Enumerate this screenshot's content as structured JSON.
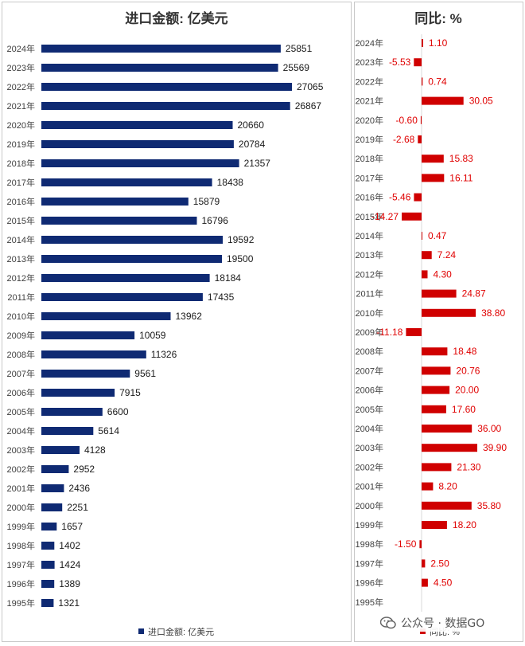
{
  "chart_data": [
    {
      "type": "bar",
      "orientation": "horizontal",
      "title": "进口金额: 亿美元",
      "categories": [
        "2024年",
        "2023年",
        "2022年",
        "2021年",
        "2020年",
        "2019年",
        "2018年",
        "2017年",
        "2016年",
        "2015年",
        "2014年",
        "2013年",
        "2012年",
        "2011年",
        "2010年",
        "2009年",
        "2008年",
        "2007年",
        "2006年",
        "2005年",
        "2004年",
        "2003年",
        "2002年",
        "2001年",
        "2000年",
        "1999年",
        "1998年",
        "1997年",
        "1996年",
        "1995年"
      ],
      "series": [
        {
          "name": "进口金额: 亿美元",
          "values": [
            25851,
            25569,
            27065,
            26867,
            20660,
            20784,
            21357,
            18438,
            15879,
            16796,
            19592,
            19500,
            18184,
            17435,
            13962,
            10059,
            11326,
            9561,
            7915,
            6600,
            5614,
            4128,
            2952,
            2436,
            2251,
            1657,
            1402,
            1424,
            1389,
            1321
          ],
          "labels": [
            "25851",
            "25569",
            "27065",
            "26867",
            "20660",
            "20784",
            "21357",
            "18438",
            "15879",
            "16796",
            "19592",
            "19500",
            "18184",
            "17435",
            "13962",
            "10059",
            "11326",
            "9561",
            "7915",
            "6600",
            "5614",
            "4128",
            "2952",
            "2436",
            "2251",
            "1657",
            "1402",
            "1424",
            "1389",
            "1321"
          ],
          "color": "#0f2a73"
        }
      ],
      "xlim": [
        0,
        30000
      ],
      "legend": "bottom",
      "grid": false
    },
    {
      "type": "bar",
      "orientation": "horizontal",
      "title": "同比: %",
      "categories": [
        "2024年",
        "2023年",
        "2022年",
        "2021年",
        "2020年",
        "2019年",
        "2018年",
        "2017年",
        "2016年",
        "2015年",
        "2014年",
        "2013年",
        "2012年",
        "2011年",
        "2010年",
        "2009年",
        "2008年",
        "2007年",
        "2006年",
        "2005年",
        "2004年",
        "2003年",
        "2002年",
        "2001年",
        "2000年",
        "1999年",
        "1998年",
        "1997年",
        "1996年",
        "1995年"
      ],
      "series": [
        {
          "name": "同比: %",
          "values": [
            1.1,
            -5.53,
            0.74,
            30.05,
            -0.6,
            -2.68,
            15.83,
            16.11,
            -5.46,
            -14.27,
            0.47,
            7.24,
            4.3,
            24.87,
            38.8,
            -11.18,
            18.48,
            20.76,
            20.0,
            17.6,
            36.0,
            39.9,
            21.3,
            8.2,
            35.8,
            18.2,
            -1.5,
            2.5,
            4.5,
            null
          ],
          "labels": [
            "1.10",
            "-5.53",
            "0.74",
            "30.05",
            "-0.60",
            "-2.68",
            "15.83",
            "16.11",
            "-5.46",
            "-14.27",
            "0.47",
            "7.24",
            "4.30",
            "24.87",
            "38.80",
            "-11.18",
            "18.48",
            "20.76",
            "20.00",
            "17.60",
            "36.00",
            "39.90",
            "21.30",
            "8.20",
            "35.80",
            "18.20",
            "-1.50",
            "2.50",
            "4.50",
            ""
          ],
          "color": "#d00000"
        }
      ],
      "xlim": [
        -15,
        45
      ],
      "legend": "bottom",
      "grid": false
    }
  ],
  "watermark": "公众号 · 数据GO"
}
